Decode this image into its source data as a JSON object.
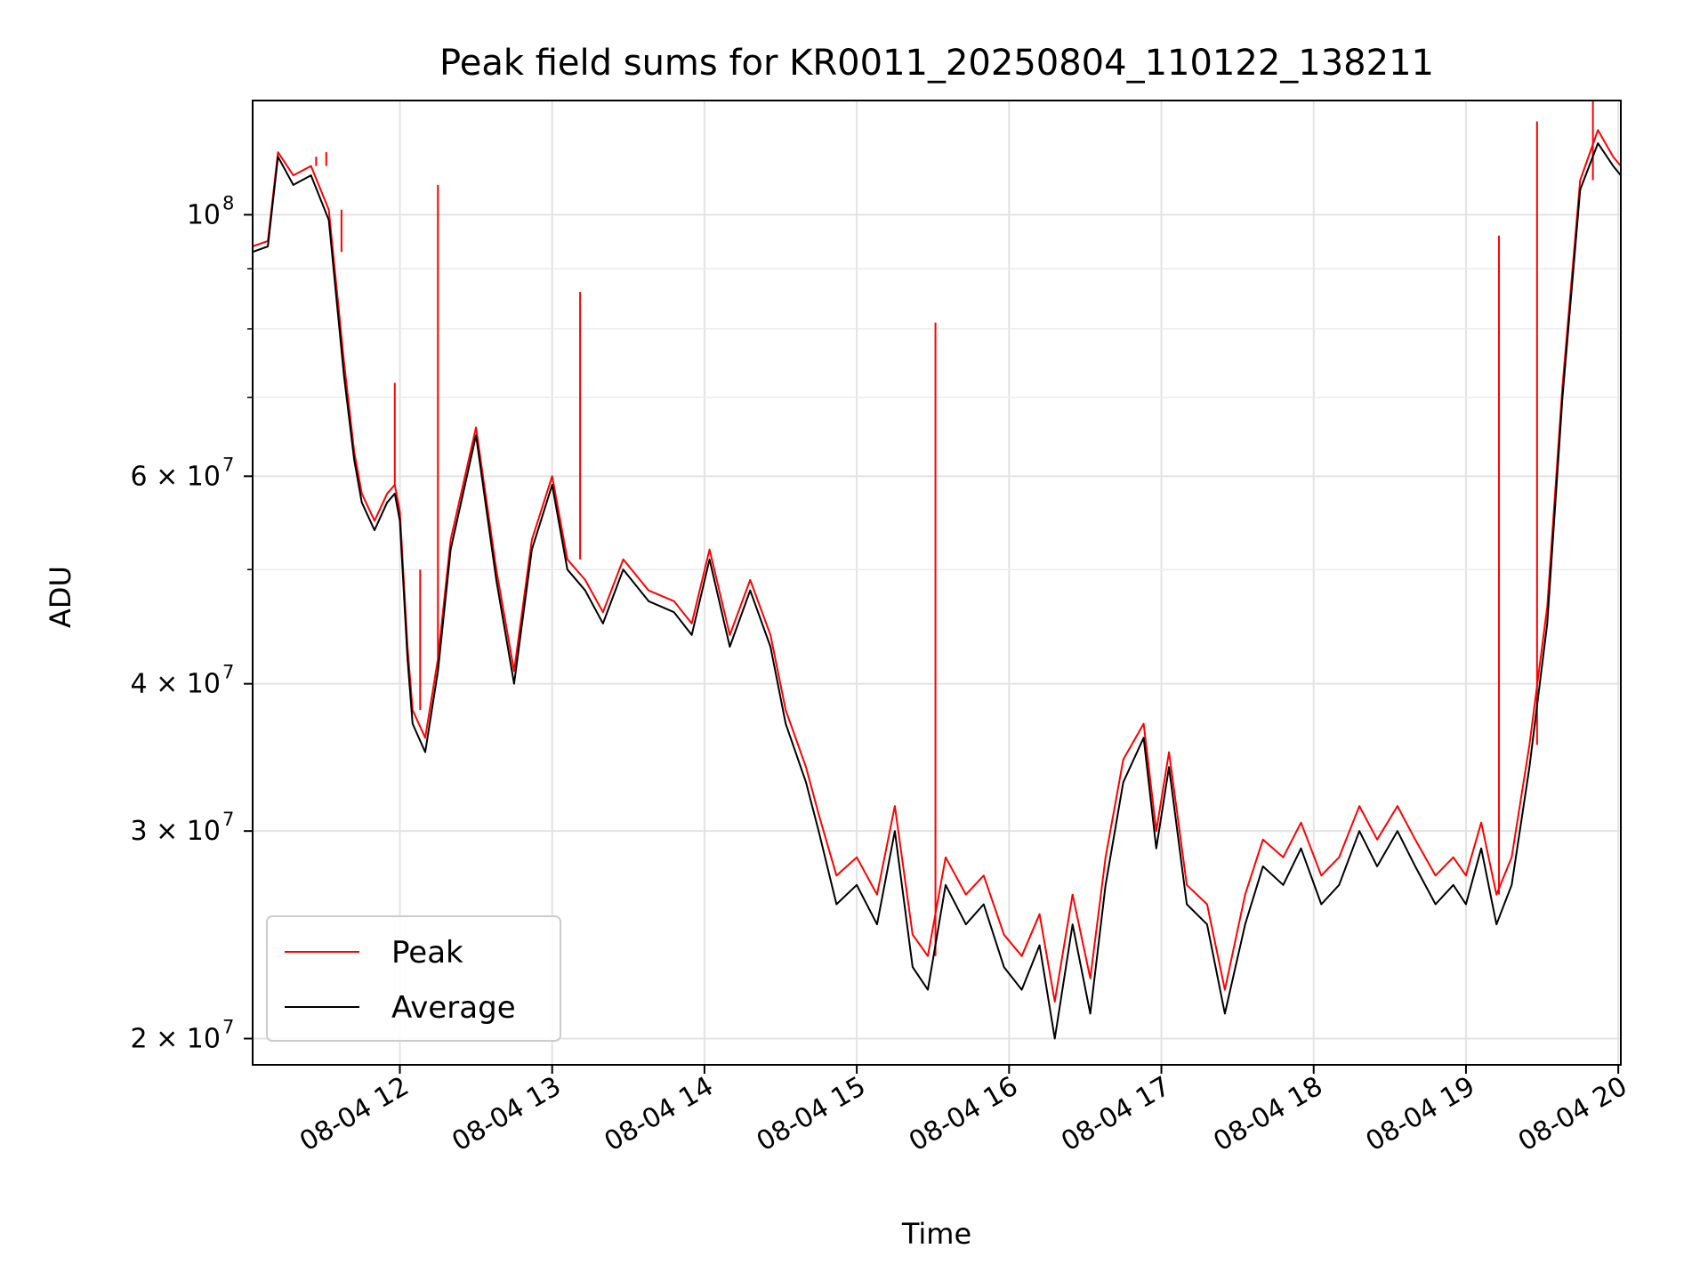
{
  "chart_data": {
    "type": "line",
    "title": "Peak field sums for KR0011_20250804_110122_138211",
    "xlabel": "Time",
    "ylabel": "ADU",
    "y_scale": "log",
    "ylim": [
      19000000,
      125000000
    ],
    "xlim": [
      "2025-08-04 11:02",
      "2025-08-04 20:01"
    ],
    "grid": true,
    "legend_position": "lower-left",
    "x_ticks": [
      {
        "value": "2025-08-04 12:00",
        "label": "08-04 12"
      },
      {
        "value": "2025-08-04 13:00",
        "label": "08-04 13"
      },
      {
        "value": "2025-08-04 14:00",
        "label": "08-04 14"
      },
      {
        "value": "2025-08-04 15:00",
        "label": "08-04 15"
      },
      {
        "value": "2025-08-04 16:00",
        "label": "08-04 16"
      },
      {
        "value": "2025-08-04 17:00",
        "label": "08-04 17"
      },
      {
        "value": "2025-08-04 18:00",
        "label": "08-04 18"
      },
      {
        "value": "2025-08-04 19:00",
        "label": "08-04 19"
      },
      {
        "value": "2025-08-04 20:00",
        "label": "08-04 20"
      }
    ],
    "y_ticks": [
      {
        "value": 20000000,
        "base": "2 × 10",
        "exp": "7"
      },
      {
        "value": 30000000,
        "base": "3 × 10",
        "exp": "7"
      },
      {
        "value": 40000000,
        "base": "4 × 10",
        "exp": "7"
      },
      {
        "value": 60000000,
        "base": "6 × 10",
        "exp": "7"
      },
      {
        "value": 100000000,
        "base": "10",
        "exp": "8"
      }
    ],
    "y_minor_ticks": [
      50000000,
      70000000,
      80000000,
      90000000
    ],
    "series": [
      {
        "name": "Average",
        "color": "#000000",
        "x": [
          "2025-08-04 11:02",
          "2025-08-04 11:08",
          "2025-08-04 11:12",
          "2025-08-04 11:18",
          "2025-08-04 11:25",
          "2025-08-04 11:32",
          "2025-08-04 11:38",
          "2025-08-04 11:42",
          "2025-08-04 11:45",
          "2025-08-04 11:50",
          "2025-08-04 11:55",
          "2025-08-04 11:58",
          "2025-08-04 12:00",
          "2025-08-04 12:03",
          "2025-08-04 12:05",
          "2025-08-04 12:10",
          "2025-08-04 12:15",
          "2025-08-04 12:20",
          "2025-08-04 12:30",
          "2025-08-04 12:38",
          "2025-08-04 12:45",
          "2025-08-04 12:52",
          "2025-08-04 13:00",
          "2025-08-04 13:06",
          "2025-08-04 13:13",
          "2025-08-04 13:20",
          "2025-08-04 13:28",
          "2025-08-04 13:38",
          "2025-08-04 13:48",
          "2025-08-04 13:55",
          "2025-08-04 14:02",
          "2025-08-04 14:10",
          "2025-08-04 14:18",
          "2025-08-04 14:26",
          "2025-08-04 14:32",
          "2025-08-04 14:40",
          "2025-08-04 14:45",
          "2025-08-04 14:52",
          "2025-08-04 15:00",
          "2025-08-04 15:08",
          "2025-08-04 15:15",
          "2025-08-04 15:22",
          "2025-08-04 15:28",
          "2025-08-04 15:35",
          "2025-08-04 15:43",
          "2025-08-04 15:50",
          "2025-08-04 15:58",
          "2025-08-04 16:05",
          "2025-08-04 16:12",
          "2025-08-04 16:18",
          "2025-08-04 16:25",
          "2025-08-04 16:32",
          "2025-08-04 16:38",
          "2025-08-04 16:45",
          "2025-08-04 16:53",
          "2025-08-04 16:58",
          "2025-08-04 17:03",
          "2025-08-04 17:10",
          "2025-08-04 17:18",
          "2025-08-04 17:25",
          "2025-08-04 17:33",
          "2025-08-04 17:40",
          "2025-08-04 17:48",
          "2025-08-04 17:55",
          "2025-08-04 18:03",
          "2025-08-04 18:10",
          "2025-08-04 18:18",
          "2025-08-04 18:25",
          "2025-08-04 18:33",
          "2025-08-04 18:40",
          "2025-08-04 18:48",
          "2025-08-04 18:55",
          "2025-08-04 19:00",
          "2025-08-04 19:06",
          "2025-08-04 19:12",
          "2025-08-04 19:18",
          "2025-08-04 19:25",
          "2025-08-04 19:32",
          "2025-08-04 19:38",
          "2025-08-04 19:45",
          "2025-08-04 19:52",
          "2025-08-04 19:58",
          "2025-08-04 20:01"
        ],
        "values": [
          93000000,
          94000000,
          112000000,
          106000000,
          108000000,
          99000000,
          73000000,
          62000000,
          57000000,
          54000000,
          57000000,
          58000000,
          55000000,
          42000000,
          37000000,
          35000000,
          41000000,
          52000000,
          65000000,
          49000000,
          40000000,
          52000000,
          59000000,
          50000000,
          48000000,
          45000000,
          50000000,
          47000000,
          46000000,
          44000000,
          51000000,
          43000000,
          48000000,
          43000000,
          37000000,
          33000000,
          30000000,
          26000000,
          27000000,
          25000000,
          30000000,
          23000000,
          22000000,
          27000000,
          25000000,
          26000000,
          23000000,
          22000000,
          24000000,
          20000000,
          25000000,
          21000000,
          27000000,
          33000000,
          36000000,
          29000000,
          34000000,
          26000000,
          25000000,
          21000000,
          25000000,
          28000000,
          27000000,
          29000000,
          26000000,
          27000000,
          30000000,
          28000000,
          30000000,
          28000000,
          26000000,
          27000000,
          26000000,
          29000000,
          25000000,
          27000000,
          34000000,
          45000000,
          70000000,
          105000000,
          115000000,
          110000000,
          108000000
        ]
      },
      {
        "name": "Peak",
        "color": "#ff0000",
        "x": [
          "2025-08-04 11:02",
          "2025-08-04 11:08",
          "2025-08-04 11:12",
          "2025-08-04 11:18",
          "2025-08-04 11:25",
          "2025-08-04 11:32",
          "2025-08-04 11:38",
          "2025-08-04 11:42",
          "2025-08-04 11:45",
          "2025-08-04 11:50",
          "2025-08-04 11:55",
          "2025-08-04 11:58",
          "2025-08-04 12:00",
          "2025-08-04 12:03",
          "2025-08-04 12:05",
          "2025-08-04 12:10",
          "2025-08-04 12:15",
          "2025-08-04 12:20",
          "2025-08-04 12:30",
          "2025-08-04 12:38",
          "2025-08-04 12:45",
          "2025-08-04 12:52",
          "2025-08-04 13:00",
          "2025-08-04 13:06",
          "2025-08-04 13:13",
          "2025-08-04 13:20",
          "2025-08-04 13:28",
          "2025-08-04 13:38",
          "2025-08-04 13:48",
          "2025-08-04 13:55",
          "2025-08-04 14:02",
          "2025-08-04 14:10",
          "2025-08-04 14:18",
          "2025-08-04 14:26",
          "2025-08-04 14:32",
          "2025-08-04 14:40",
          "2025-08-04 14:45",
          "2025-08-04 14:52",
          "2025-08-04 15:00",
          "2025-08-04 15:08",
          "2025-08-04 15:15",
          "2025-08-04 15:22",
          "2025-08-04 15:28",
          "2025-08-04 15:35",
          "2025-08-04 15:43",
          "2025-08-04 15:50",
          "2025-08-04 15:58",
          "2025-08-04 16:05",
          "2025-08-04 16:12",
          "2025-08-04 16:18",
          "2025-08-04 16:25",
          "2025-08-04 16:32",
          "2025-08-04 16:38",
          "2025-08-04 16:45",
          "2025-08-04 16:53",
          "2025-08-04 16:58",
          "2025-08-04 17:03",
          "2025-08-04 17:10",
          "2025-08-04 17:18",
          "2025-08-04 17:25",
          "2025-08-04 17:33",
          "2025-08-04 17:40",
          "2025-08-04 17:48",
          "2025-08-04 17:55",
          "2025-08-04 18:03",
          "2025-08-04 18:10",
          "2025-08-04 18:18",
          "2025-08-04 18:25",
          "2025-08-04 18:33",
          "2025-08-04 18:40",
          "2025-08-04 18:48",
          "2025-08-04 18:55",
          "2025-08-04 19:00",
          "2025-08-04 19:06",
          "2025-08-04 19:12",
          "2025-08-04 19:18",
          "2025-08-04 19:25",
          "2025-08-04 19:32",
          "2025-08-04 19:38",
          "2025-08-04 19:45",
          "2025-08-04 19:52",
          "2025-08-04 19:58",
          "2025-08-04 20:01"
        ],
        "values": [
          94000000,
          95000000,
          113000000,
          108000000,
          110000000,
          101000000,
          75000000,
          63000000,
          58000000,
          55000000,
          58000000,
          59000000,
          56000000,
          43000000,
          38000000,
          36000000,
          42000000,
          53000000,
          66000000,
          50000000,
          41000000,
          53000000,
          60000000,
          51000000,
          49000000,
          46000000,
          51000000,
          48000000,
          47000000,
          45000000,
          52000000,
          44000000,
          49000000,
          44000000,
          38000000,
          34000000,
          31000000,
          27500000,
          28500000,
          26500000,
          31500000,
          24500000,
          23500000,
          28500000,
          26500000,
          27500000,
          24500000,
          23500000,
          25500000,
          21500000,
          26500000,
          22500000,
          28500000,
          34500000,
          37000000,
          30000000,
          35000000,
          27000000,
          26000000,
          22000000,
          26500000,
          29500000,
          28500000,
          30500000,
          27500000,
          28500000,
          31500000,
          29500000,
          31500000,
          29500000,
          27500000,
          28500000,
          27500000,
          30500000,
          26500000,
          28500000,
          35500000,
          46500000,
          71500000,
          107000000,
          118000000,
          112000000,
          110000000
        ],
        "spikes": [
          {
            "x": "2025-08-04 11:27",
            "value": 112000000
          },
          {
            "x": "2025-08-04 11:31",
            "value": 113000000
          },
          {
            "x": "2025-08-04 11:37",
            "value": 93000000
          },
          {
            "x": "2025-08-04 11:58",
            "value": 72000000
          },
          {
            "x": "2025-08-04 12:08",
            "value": 50000000
          },
          {
            "x": "2025-08-04 12:15",
            "value": 106000000
          },
          {
            "x": "2025-08-04 13:11",
            "value": 86000000
          },
          {
            "x": "2025-08-04 15:31",
            "value": 81000000
          },
          {
            "x": "2025-08-04 19:13",
            "value": 96000000
          },
          {
            "x": "2025-08-04 19:28",
            "value": 120000000
          },
          {
            "x": "2025-08-04 19:50",
            "value": 125000000
          }
        ]
      }
    ]
  }
}
